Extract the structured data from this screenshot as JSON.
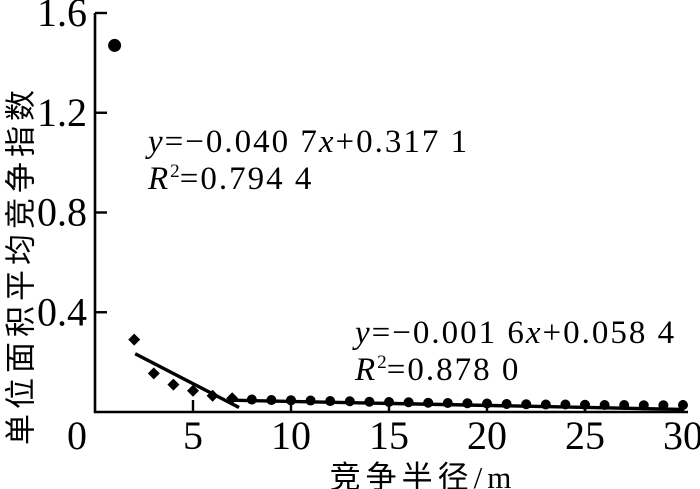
{
  "chart_data": {
    "type": "scatter",
    "title": "",
    "xlabel": "竞争半径/m",
    "ylabel": "单位面积平均竞争指数",
    "xlim": [
      0,
      30
    ],
    "ylim": [
      0,
      1.6
    ],
    "x_ticks": [
      0,
      5,
      10,
      15,
      20,
      25,
      30
    ],
    "y_ticks": [
      0.4,
      0.8,
      1.2,
      1.6
    ],
    "grid": false,
    "legend": "none",
    "ink_color": "#000000",
    "background_color": "#ffffff",
    "series": [
      {
        "name": "outlier-point",
        "marker": "circle",
        "marker_radius": 6.5,
        "points": [
          [
            1,
            1.47
          ]
        ]
      },
      {
        "name": "short-radius-points",
        "marker": "diamond",
        "marker_radius": 6,
        "points": [
          [
            2,
            0.29
          ],
          [
            3,
            0.155
          ],
          [
            4,
            0.11
          ],
          [
            5,
            0.085
          ],
          [
            6,
            0.065
          ],
          [
            7,
            0.055
          ]
        ]
      },
      {
        "name": "long-radius-points",
        "marker": "circle",
        "marker_radius": 5,
        "points": [
          [
            8,
            0.05
          ],
          [
            9,
            0.048
          ],
          [
            10,
            0.047
          ],
          [
            11,
            0.046
          ],
          [
            12,
            0.044
          ],
          [
            13,
            0.043
          ],
          [
            14,
            0.041
          ],
          [
            15,
            0.04
          ],
          [
            16,
            0.039
          ],
          [
            17,
            0.037
          ],
          [
            18,
            0.036
          ],
          [
            19,
            0.035
          ],
          [
            20,
            0.034
          ],
          [
            21,
            0.032
          ],
          [
            22,
            0.031
          ],
          [
            23,
            0.03
          ],
          [
            24,
            0.03
          ],
          [
            25,
            0.029
          ],
          [
            26,
            0.028
          ],
          [
            27,
            0.028
          ],
          [
            28,
            0.027
          ],
          [
            29,
            0.027
          ],
          [
            30,
            0.028
          ]
        ]
      }
    ],
    "trendlines": [
      {
        "label": "y=−0.040 7x+0.317 1",
        "r2_label": "R²=0.794 4",
        "slope": -0.0407,
        "intercept": 0.3171,
        "x_start": 2.05,
        "x_end": 7.35
      },
      {
        "label": "y=−0.001 6x+0.058 4",
        "r2_label": "R²=0.878 0",
        "slope": -0.0016,
        "intercept": 0.0584,
        "x_start": 7,
        "x_end": 30
      }
    ]
  },
  "equations": [
    {
      "lhs": "y",
      "mid": "=−0.040 7",
      "xvar": "x",
      "tail": "+0.317 1",
      "r_base": "R",
      "r_sup": "2",
      "r_rest": "=0.794 4"
    },
    {
      "lhs": "y",
      "mid": "=−0.001 6",
      "xvar": "x",
      "tail": "+0.058 4",
      "r_base": "R",
      "r_sup": "2",
      "r_rest": "=0.878 0"
    }
  ]
}
